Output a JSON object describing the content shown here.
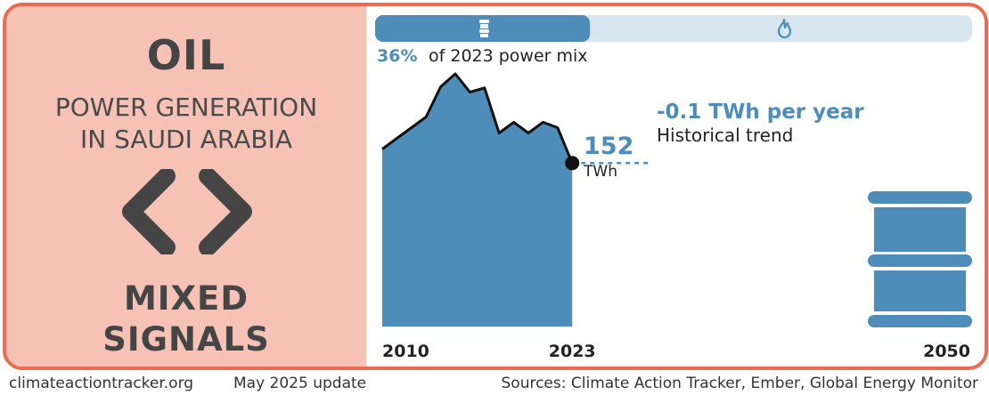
{
  "left_panel": {
    "fuel": "OIL",
    "subtitle_line1": "POWER GENERATION",
    "subtitle_line2": "IN SAUDI ARABIA",
    "signal_icon": "angle-brackets-icon",
    "status_line1": "MIXED",
    "status_line2": "SIGNALS"
  },
  "share_bar": {
    "share_fraction": 0.36,
    "oil_icon": "oil-barrel-icon",
    "gas_icon": "flame-icon",
    "filled_color": "#4e8db9",
    "empty_color": "#d7e5ef",
    "share_percent": "36%",
    "share_text": "of 2023 power mix"
  },
  "trend": {
    "value": "-0.1 TWh per year",
    "label": "Historical trend"
  },
  "current": {
    "value": "152",
    "unit": "TWh"
  },
  "target_icon": "oil-barrel-icon",
  "chart_data": {
    "type": "area",
    "x": [
      2010,
      2011,
      2012,
      2013,
      2014,
      2015,
      2016,
      2017,
      2018,
      2019,
      2020,
      2021,
      2022,
      2023
    ],
    "y": [
      165,
      175,
      185,
      195,
      223,
      235,
      218,
      222,
      180,
      190,
      180,
      190,
      185,
      152
    ],
    "unit": "TWh",
    "tick_labels": [
      "2010",
      "2023",
      "2050"
    ],
    "x_range": [
      2010,
      2050
    ],
    "area_color": "#4e8db9",
    "accent_color": "#4e8db9"
  },
  "footer": {
    "site": "climateactiontracker.org",
    "date": "May 2025 update",
    "sources": "Sources: Climate Action Tracker, Ember, Global Energy Monitor"
  }
}
